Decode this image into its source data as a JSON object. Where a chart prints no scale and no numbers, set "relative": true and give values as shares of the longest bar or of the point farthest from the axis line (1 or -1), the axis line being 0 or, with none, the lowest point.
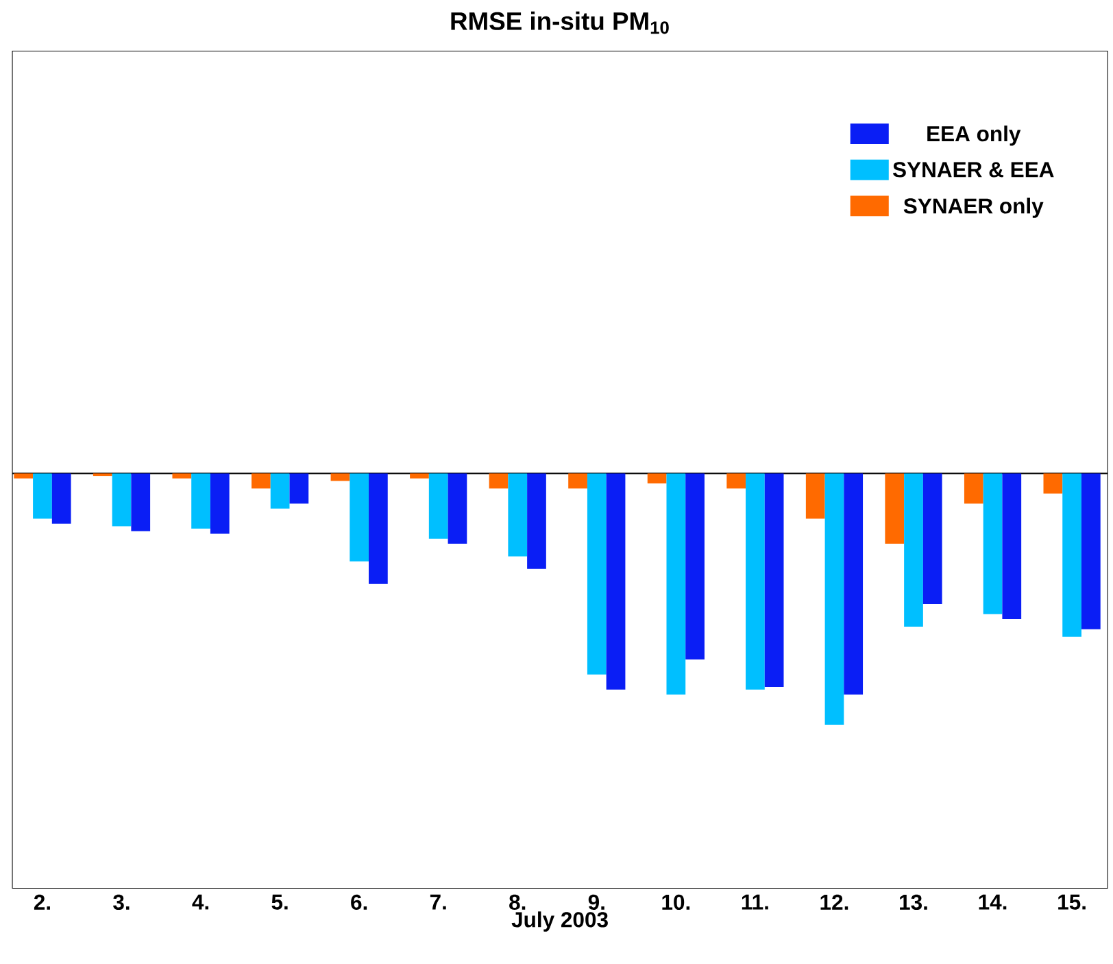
{
  "chart_data": {
    "type": "bar",
    "title": "RMSE in-situ PM$_{10}$",
    "xlabel": "July 2003",
    "relative": true,
    "legend": "top right",
    "categories": [
      "2.",
      "3.",
      "4.",
      "5.",
      "6.",
      "7.",
      "8.",
      "9.",
      "10.",
      "11.",
      "12.",
      "13.",
      "14.",
      "15."
    ],
    "series": [
      {
        "name": "SYNAER only",
        "color": "#ff6a00",
        "values": [
          -0.02,
          -0.01,
          -0.02,
          -0.06,
          -0.03,
          -0.02,
          -0.06,
          -0.06,
          -0.04,
          -0.06,
          -0.18,
          -0.28,
          -0.12,
          -0.08
        ]
      },
      {
        "name": "SYNAER & EEA",
        "color": "#00bfff",
        "values": [
          -0.18,
          -0.21,
          -0.22,
          -0.14,
          -0.35,
          -0.26,
          -0.33,
          -0.8,
          -0.88,
          -0.86,
          -1.0,
          -0.61,
          -0.56,
          -0.65
        ]
      },
      {
        "name": "EEA only",
        "color": "#0a1ef5",
        "values": [
          -0.2,
          -0.23,
          -0.24,
          -0.12,
          -0.44,
          -0.28,
          -0.38,
          -0.86,
          -0.74,
          -0.85,
          -0.88,
          -0.52,
          -0.58,
          -0.62
        ]
      }
    ]
  }
}
